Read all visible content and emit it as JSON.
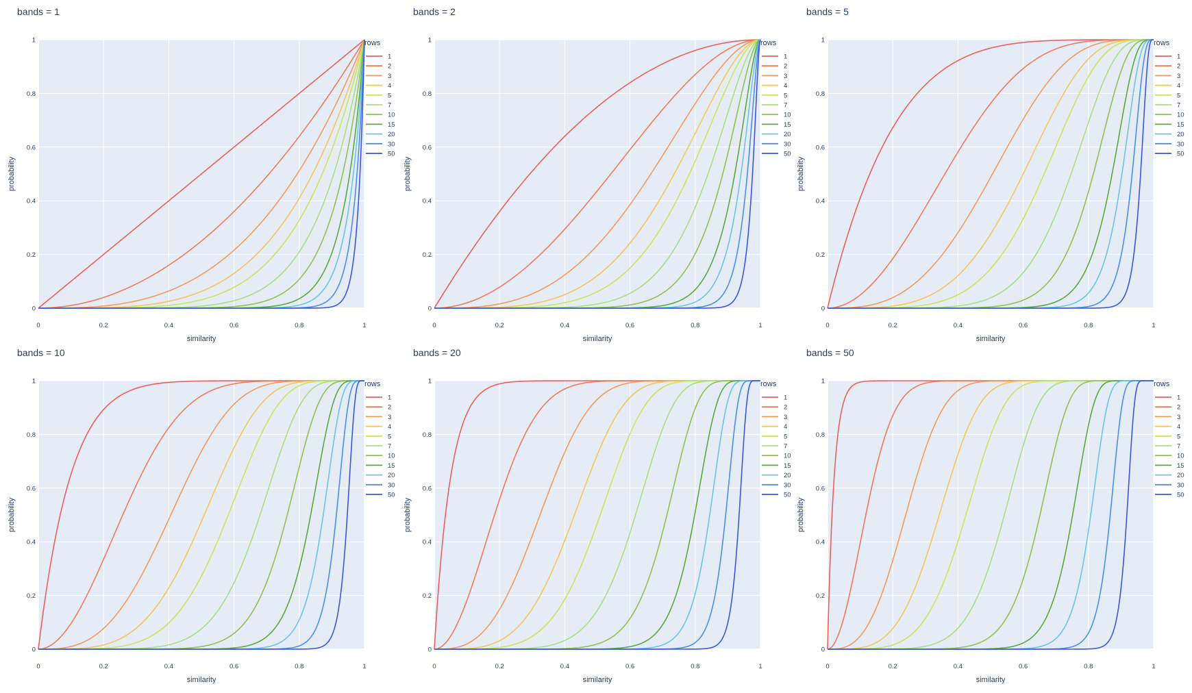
{
  "figure": {
    "background": "#ffffff",
    "plot_background": "#e5ecf6",
    "grid_color": "#ffffff",
    "text_color": "#2a3f5f"
  },
  "legend_title": "rows",
  "chart_data": [
    {
      "type": "line",
      "title": "bands = 1",
      "bands": 1,
      "xlabel": "similarity",
      "ylabel": "probability",
      "xlim": [
        0,
        1
      ],
      "ylim": [
        0,
        1
      ],
      "xticks": [
        "0",
        "0.2",
        "0.4",
        "0.6",
        "0.8",
        "1"
      ],
      "yticks": [
        "0",
        "0.2",
        "0.4",
        "0.6",
        "0.8",
        "1"
      ],
      "grid": true,
      "legend_position": "right",
      "function": "1 - (1 - s^rows)^bands",
      "series": [
        {
          "name": "1",
          "rows": 1,
          "color": "#e8605b"
        },
        {
          "name": "2",
          "rows": 2,
          "color": "#ee7a5b"
        },
        {
          "name": "3",
          "rows": 3,
          "color": "#f29a5a"
        },
        {
          "name": "4",
          "rows": 4,
          "color": "#f6c45a"
        },
        {
          "name": "5",
          "rows": 5,
          "color": "#c8e65a"
        },
        {
          "name": "7",
          "rows": 7,
          "color": "#a6e07e"
        },
        {
          "name": "10",
          "rows": 10,
          "color": "#8fc24f"
        },
        {
          "name": "15",
          "rows": 15,
          "color": "#5aa83a"
        },
        {
          "name": "20",
          "rows": 20,
          "color": "#6bc4e6"
        },
        {
          "name": "30",
          "rows": 30,
          "color": "#4a8ee6"
        },
        {
          "name": "50",
          "rows": 50,
          "color": "#3a55e0"
        }
      ]
    },
    {
      "type": "line",
      "title": "bands = 2",
      "bands": 2,
      "xlabel": "similarity",
      "ylabel": "probability",
      "xlim": [
        0,
        1
      ],
      "ylim": [
        0,
        1
      ],
      "xticks": [
        "0",
        "0.2",
        "0.4",
        "0.6",
        "0.8",
        "1"
      ],
      "yticks": [
        "0",
        "0.2",
        "0.4",
        "0.6",
        "0.8",
        "1"
      ],
      "grid": true,
      "legend_position": "right",
      "function": "1 - (1 - s^rows)^bands",
      "series": [
        {
          "name": "1",
          "rows": 1,
          "color": "#e8605b"
        },
        {
          "name": "2",
          "rows": 2,
          "color": "#ee7a5b"
        },
        {
          "name": "3",
          "rows": 3,
          "color": "#f29a5a"
        },
        {
          "name": "4",
          "rows": 4,
          "color": "#f6c45a"
        },
        {
          "name": "5",
          "rows": 5,
          "color": "#c8e65a"
        },
        {
          "name": "7",
          "rows": 7,
          "color": "#a6e07e"
        },
        {
          "name": "10",
          "rows": 10,
          "color": "#8fc24f"
        },
        {
          "name": "15",
          "rows": 15,
          "color": "#5aa83a"
        },
        {
          "name": "20",
          "rows": 20,
          "color": "#6bc4e6"
        },
        {
          "name": "30",
          "rows": 30,
          "color": "#4a8ee6"
        },
        {
          "name": "50",
          "rows": 50,
          "color": "#3a55e0"
        }
      ]
    },
    {
      "type": "line",
      "title": "bands = 5",
      "bands": 5,
      "xlabel": "similarity",
      "ylabel": "probability",
      "xlim": [
        0,
        1
      ],
      "ylim": [
        0,
        1
      ],
      "xticks": [
        "0",
        "0.2",
        "0.4",
        "0.6",
        "0.8",
        "1"
      ],
      "yticks": [
        "0",
        "0.2",
        "0.4",
        "0.6",
        "0.8",
        "1"
      ],
      "grid": true,
      "legend_position": "right",
      "function": "1 - (1 - s^rows)^bands",
      "series": [
        {
          "name": "1",
          "rows": 1,
          "color": "#e8605b"
        },
        {
          "name": "2",
          "rows": 2,
          "color": "#ee7a5b"
        },
        {
          "name": "3",
          "rows": 3,
          "color": "#f29a5a"
        },
        {
          "name": "4",
          "rows": 4,
          "color": "#f6c45a"
        },
        {
          "name": "5",
          "rows": 5,
          "color": "#c8e65a"
        },
        {
          "name": "7",
          "rows": 7,
          "color": "#a6e07e"
        },
        {
          "name": "10",
          "rows": 10,
          "color": "#8fc24f"
        },
        {
          "name": "15",
          "rows": 15,
          "color": "#5aa83a"
        },
        {
          "name": "20",
          "rows": 20,
          "color": "#6bc4e6"
        },
        {
          "name": "30",
          "rows": 30,
          "color": "#4a8ee6"
        },
        {
          "name": "50",
          "rows": 50,
          "color": "#3a55e0"
        }
      ]
    },
    {
      "type": "line",
      "title": "bands = 10",
      "bands": 10,
      "xlabel": "similarity",
      "ylabel": "probability",
      "xlim": [
        0,
        1
      ],
      "ylim": [
        0,
        1
      ],
      "xticks": [
        "0",
        "0.2",
        "0.4",
        "0.6",
        "0.8",
        "1"
      ],
      "yticks": [
        "0",
        "0.2",
        "0.4",
        "0.6",
        "0.8",
        "1"
      ],
      "grid": true,
      "legend_position": "right",
      "function": "1 - (1 - s^rows)^bands",
      "series": [
        {
          "name": "1",
          "rows": 1,
          "color": "#e8605b"
        },
        {
          "name": "2",
          "rows": 2,
          "color": "#ee7a5b"
        },
        {
          "name": "3",
          "rows": 3,
          "color": "#f29a5a"
        },
        {
          "name": "4",
          "rows": 4,
          "color": "#f6c45a"
        },
        {
          "name": "5",
          "rows": 5,
          "color": "#c8e65a"
        },
        {
          "name": "7",
          "rows": 7,
          "color": "#a6e07e"
        },
        {
          "name": "10",
          "rows": 10,
          "color": "#8fc24f"
        },
        {
          "name": "15",
          "rows": 15,
          "color": "#5aa83a"
        },
        {
          "name": "20",
          "rows": 20,
          "color": "#6bc4e6"
        },
        {
          "name": "30",
          "rows": 30,
          "color": "#4a8ee6"
        },
        {
          "name": "50",
          "rows": 50,
          "color": "#3a55e0"
        }
      ]
    },
    {
      "type": "line",
      "title": "bands = 20",
      "bands": 20,
      "xlabel": "similarity",
      "ylabel": "probability",
      "xlim": [
        0,
        1
      ],
      "ylim": [
        0,
        1
      ],
      "xticks": [
        "0",
        "0.2",
        "0.4",
        "0.6",
        "0.8",
        "1"
      ],
      "yticks": [
        "0",
        "0.2",
        "0.4",
        "0.6",
        "0.8",
        "1"
      ],
      "grid": true,
      "legend_position": "right",
      "function": "1 - (1 - s^rows)^bands",
      "series": [
        {
          "name": "1",
          "rows": 1,
          "color": "#e8605b"
        },
        {
          "name": "2",
          "rows": 2,
          "color": "#ee7a5b"
        },
        {
          "name": "3",
          "rows": 3,
          "color": "#f29a5a"
        },
        {
          "name": "4",
          "rows": 4,
          "color": "#f6c45a"
        },
        {
          "name": "5",
          "rows": 5,
          "color": "#c8e65a"
        },
        {
          "name": "7",
          "rows": 7,
          "color": "#a6e07e"
        },
        {
          "name": "10",
          "rows": 10,
          "color": "#8fc24f"
        },
        {
          "name": "15",
          "rows": 15,
          "color": "#5aa83a"
        },
        {
          "name": "20",
          "rows": 20,
          "color": "#6bc4e6"
        },
        {
          "name": "30",
          "rows": 30,
          "color": "#4a8ee6"
        },
        {
          "name": "50",
          "rows": 50,
          "color": "#3a55e0"
        }
      ]
    },
    {
      "type": "line",
      "title": "bands = 50",
      "bands": 50,
      "xlabel": "similarity",
      "ylabel": "probability",
      "xlim": [
        0,
        1
      ],
      "ylim": [
        0,
        1
      ],
      "xticks": [
        "0",
        "0.2",
        "0.4",
        "0.6",
        "0.8",
        "1"
      ],
      "yticks": [
        "0",
        "0.2",
        "0.4",
        "0.6",
        "0.8",
        "1"
      ],
      "grid": true,
      "legend_position": "right",
      "function": "1 - (1 - s^rows)^bands",
      "series": [
        {
          "name": "1",
          "rows": 1,
          "color": "#e8605b"
        },
        {
          "name": "2",
          "rows": 2,
          "color": "#ee7a5b"
        },
        {
          "name": "3",
          "rows": 3,
          "color": "#f29a5a"
        },
        {
          "name": "4",
          "rows": 4,
          "color": "#f6c45a"
        },
        {
          "name": "5",
          "rows": 5,
          "color": "#c8e65a"
        },
        {
          "name": "7",
          "rows": 7,
          "color": "#a6e07e"
        },
        {
          "name": "10",
          "rows": 10,
          "color": "#8fc24f"
        },
        {
          "name": "15",
          "rows": 15,
          "color": "#5aa83a"
        },
        {
          "name": "20",
          "rows": 20,
          "color": "#6bc4e6"
        },
        {
          "name": "30",
          "rows": 30,
          "color": "#4a8ee6"
        },
        {
          "name": "50",
          "rows": 50,
          "color": "#3a55e0"
        }
      ]
    }
  ]
}
